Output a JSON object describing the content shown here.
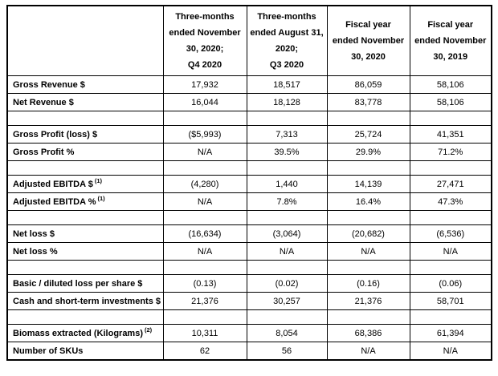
{
  "table": {
    "columns": [
      {
        "id": "q4-2020",
        "lines": [
          "Three-months",
          "ended November",
          "30, 2020;",
          "Q4 2020"
        ]
      },
      {
        "id": "q3-2020",
        "lines": [
          "Three-months",
          "ended August 31,",
          "2020;",
          "Q3 2020"
        ]
      },
      {
        "id": "fy-2020",
        "lines": [
          "Fiscal year",
          "ended November",
          "30, 2020"
        ]
      },
      {
        "id": "fy-2019",
        "lines": [
          "Fiscal year",
          "ended November",
          "30, 2019"
        ]
      }
    ],
    "rows": [
      {
        "type": "data",
        "label": "Gross Revenue $",
        "sup": "",
        "values": [
          "17,932",
          "18,517",
          "86,059",
          "58,106"
        ]
      },
      {
        "type": "data",
        "label": "Net Revenue $",
        "sup": "",
        "values": [
          "16,044",
          "18,128",
          "83,778",
          "58,106"
        ]
      },
      {
        "type": "spacer"
      },
      {
        "type": "data",
        "label": "Gross Profit (loss) $",
        "sup": "",
        "values": [
          "($5,993)",
          "7,313",
          "25,724",
          "41,351"
        ]
      },
      {
        "type": "data",
        "label": "Gross Profit %",
        "sup": "",
        "values": [
          "N/A",
          "39.5%",
          "29.9%",
          "71.2%"
        ]
      },
      {
        "type": "spacer"
      },
      {
        "type": "data",
        "label": "Adjusted EBITDA $",
        "sup": "(1)",
        "values": [
          "(4,280)",
          "1,440",
          "14,139",
          "27,471"
        ]
      },
      {
        "type": "data",
        "label": "Adjusted EBITDA %",
        "sup": "(1)",
        "values": [
          "N/A",
          "7.8%",
          "16.4%",
          "47.3%"
        ]
      },
      {
        "type": "spacer"
      },
      {
        "type": "data",
        "label": "Net loss $",
        "sup": "",
        "values": [
          "(16,634)",
          "(3,064)",
          "(20,682)",
          "(6,536)"
        ]
      },
      {
        "type": "data",
        "label": "Net loss %",
        "sup": "",
        "values": [
          "N/A",
          "N/A",
          "N/A",
          "N/A"
        ]
      },
      {
        "type": "spacer"
      },
      {
        "type": "data",
        "label": "Basic / diluted loss per share $",
        "sup": "",
        "values": [
          "(0.13)",
          "(0.02)",
          "(0.16)",
          "(0.06)"
        ]
      },
      {
        "type": "data",
        "label": "Cash and short-term investments $",
        "sup": "",
        "values": [
          "21,376",
          "30,257",
          "21,376",
          "58,701"
        ]
      },
      {
        "type": "spacer"
      },
      {
        "type": "data",
        "label": "Biomass extracted (Kilograms)",
        "sup": "(2)",
        "values": [
          "10,311",
          "8,054",
          "68,386",
          "61,394"
        ]
      },
      {
        "type": "data",
        "label": "Number of SKUs",
        "sup": "",
        "values": [
          "62",
          "56",
          "N/A",
          "N/A"
        ]
      }
    ],
    "colors": {
      "border": "#000000",
      "text": "#000000",
      "background": "#ffffff"
    }
  }
}
